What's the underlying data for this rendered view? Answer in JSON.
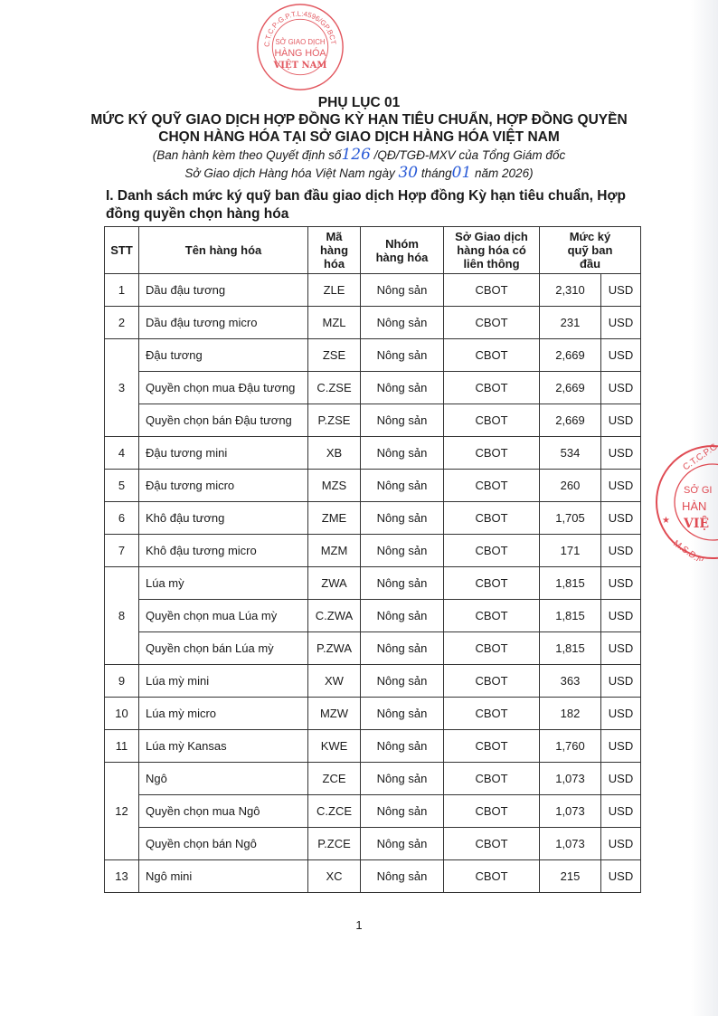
{
  "header": {
    "appendix": "PHỤ LỤC 01",
    "title_line1": "MỨC KÝ QUỸ GIAO DỊCH HỢP ĐỒNG KỲ HẠN TIÊU CHUẨN, HỢP ĐỒNG QUYỀN",
    "title_line2": "CHỌN HÀNG HÓA TẠI SỞ GIAO DỊCH HÀNG HÓA VIỆT NAM",
    "sub1_a": "(Ban hành kèm theo Quyết định số",
    "decision_no": "126",
    "sub1_b": " /QĐ/TGĐ-MXV của Tổng Giám đốc",
    "sub2_a": "Sở Giao dịch Hàng hóa Việt Nam ngày ",
    "day": "30",
    "sub2_b": " tháng",
    "month": "01",
    "sub2_c": " năm 2026)"
  },
  "section_title": "I.  Danh sách mức ký quỹ ban đầu giao dịch Hợp đồng Kỳ hạn tiêu chuẩn, Hợp đồng quyền chọn hàng hóa",
  "table": {
    "headers": [
      "STT",
      "Tên hàng hóa",
      "Mã hàng hóa",
      "Nhóm hàng hóa",
      "Sở Giao dịch hàng hóa có liên thông",
      "Mức ký quỹ ban đầu"
    ],
    "groups": [
      {
        "stt": "1",
        "rows": [
          [
            "Dầu đậu tương",
            "ZLE",
            "Nông sản",
            "CBOT",
            "2,310",
            "USD"
          ]
        ]
      },
      {
        "stt": "2",
        "rows": [
          [
            "Dầu đậu tương micro",
            "MZL",
            "Nông sản",
            "CBOT",
            "231",
            "USD"
          ]
        ]
      },
      {
        "stt": "3",
        "rows": [
          [
            "Đậu tương",
            "ZSE",
            "Nông sản",
            "CBOT",
            "2,669",
            "USD"
          ],
          [
            "Quyền chọn mua Đậu tương",
            "C.ZSE",
            "Nông sản",
            "CBOT",
            "2,669",
            "USD"
          ],
          [
            "Quyền chọn bán Đậu tương",
            "P.ZSE",
            "Nông sản",
            "CBOT",
            "2,669",
            "USD"
          ]
        ]
      },
      {
        "stt": "4",
        "rows": [
          [
            "Đậu tương mini",
            "XB",
            "Nông sản",
            "CBOT",
            "534",
            "USD"
          ]
        ]
      },
      {
        "stt": "5",
        "rows": [
          [
            "Đậu tương micro",
            "MZS",
            "Nông sản",
            "CBOT",
            "260",
            "USD"
          ]
        ]
      },
      {
        "stt": "6",
        "rows": [
          [
            "Khô đậu tương",
            "ZME",
            "Nông sản",
            "CBOT",
            "1,705",
            "USD"
          ]
        ]
      },
      {
        "stt": "7",
        "rows": [
          [
            "Khô đậu tương micro",
            "MZM",
            "Nông sản",
            "CBOT",
            "171",
            "USD"
          ]
        ]
      },
      {
        "stt": "8",
        "rows": [
          [
            "Lúa mỳ",
            "ZWA",
            "Nông sản",
            "CBOT",
            "1,815",
            "USD"
          ],
          [
            "Quyền chọn mua Lúa mỳ",
            "C.ZWA",
            "Nông sản",
            "CBOT",
            "1,815",
            "USD"
          ],
          [
            "Quyền chọn bán Lúa mỳ",
            "P.ZWA",
            "Nông sản",
            "CBOT",
            "1,815",
            "USD"
          ]
        ]
      },
      {
        "stt": "9",
        "rows": [
          [
            "Lúa mỳ mini",
            "XW",
            "Nông sản",
            "CBOT",
            "363",
            "USD"
          ]
        ]
      },
      {
        "stt": "10",
        "rows": [
          [
            "Lúa mỳ micro",
            "MZW",
            "Nông sản",
            "CBOT",
            "182",
            "USD"
          ]
        ]
      },
      {
        "stt": "11",
        "rows": [
          [
            "Lúa mỳ Kansas",
            "KWE",
            "Nông sản",
            "CBOT",
            "1,760",
            "USD"
          ]
        ]
      },
      {
        "stt": "12",
        "rows": [
          [
            "Ngô",
            "ZCE",
            "Nông sản",
            "CBOT",
            "1,073",
            "USD"
          ],
          [
            "Quyền chọn mua Ngô",
            "C.ZCE",
            "Nông sản",
            "CBOT",
            "1,073",
            "USD"
          ],
          [
            "Quyền chọn bán Ngô",
            "P.ZCE",
            "Nông sản",
            "CBOT",
            "1,073",
            "USD"
          ]
        ]
      },
      {
        "stt": "13",
        "rows": [
          [
            "Ngô mini",
            "XC",
            "Nông sản",
            "CBOT",
            "215",
            "USD"
          ]
        ]
      }
    ]
  },
  "page_number": "1",
  "stamp": {
    "color": "#d9202a",
    "ring_text": "C.T.C.P-G.P.T.L:4596/GP.BCT",
    "inner_line1": "SỞ GIAO DỊCH",
    "inner_line2": "HÀNG HÓA",
    "inner_line3": "VIỆT NAM"
  },
  "stamp_right": {
    "ring_text": "C.T.C.P-G.P.T.",
    "ring_bottom": "M.S.D.N",
    "inner_line1": "SỞ GI",
    "inner_line2": "HÀN",
    "inner_line3": "VIỆ"
  }
}
